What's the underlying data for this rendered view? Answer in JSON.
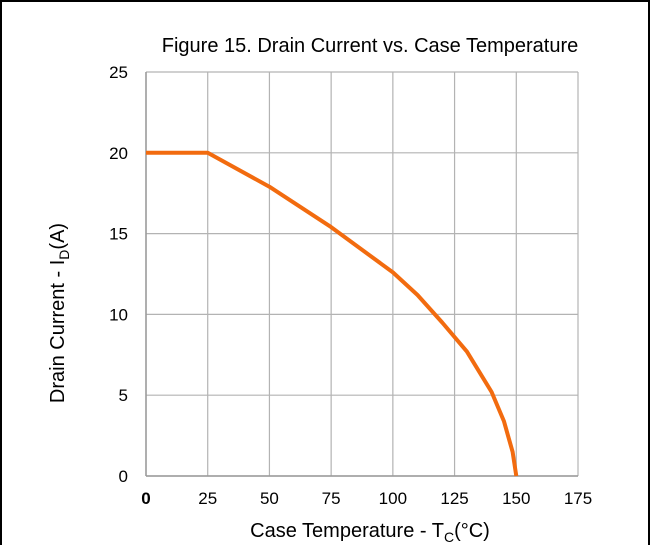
{
  "chart_data": {
    "type": "line",
    "title": "Figure 15. Drain Current vs. Case Temperature",
    "xlabel": {
      "main": "Case Temperature - T",
      "sub": "C",
      "tail": "(°C)"
    },
    "ylabel": {
      "main": "Drain Current - I",
      "sub": "D",
      "tail": "(A)"
    },
    "xlim": [
      0,
      175
    ],
    "ylim": [
      0,
      25
    ],
    "x_ticks": [
      0,
      25,
      50,
      75,
      100,
      125,
      150,
      175
    ],
    "y_ticks": [
      0,
      5,
      10,
      15,
      20,
      25
    ],
    "grid": true,
    "line_color": "#f26b0f",
    "series": [
      {
        "x": [
          0,
          25,
          50,
          75,
          100,
          110,
          120,
          130,
          140,
          145,
          147,
          148.5,
          150
        ],
        "y": [
          20,
          20,
          17.9,
          15.4,
          12.6,
          11.2,
          9.5,
          7.7,
          5.2,
          3.4,
          2.3,
          1.5,
          0
        ]
      }
    ]
  }
}
